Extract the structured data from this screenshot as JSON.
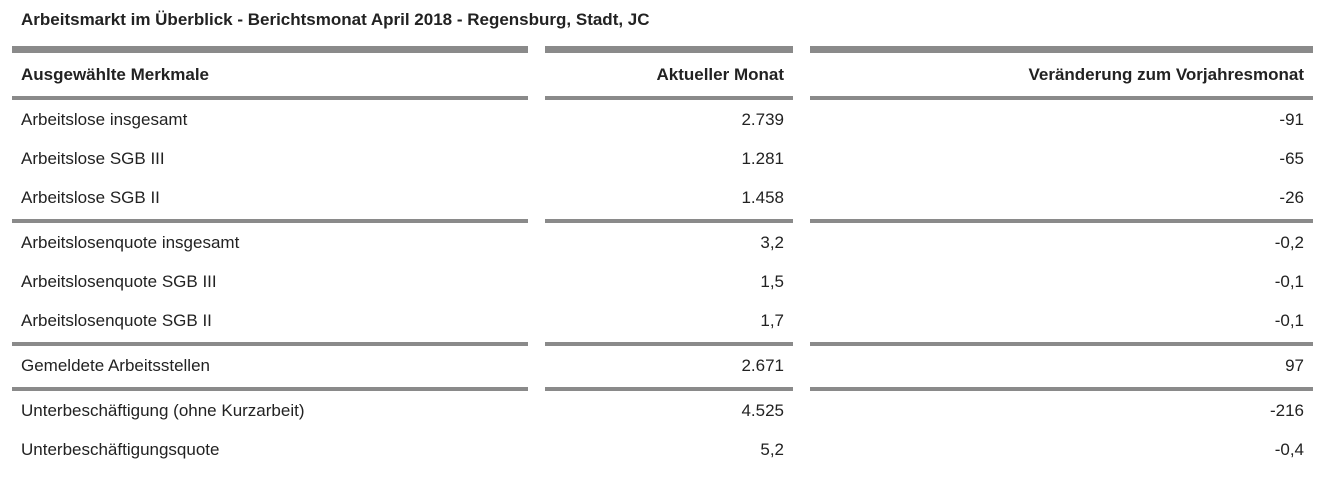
{
  "title": "Arbeitsmarkt im Überblick - Berichtsmonat April 2018 - Regensburg, Stadt, JC",
  "table": {
    "columns": [
      "Ausgewählte Merkmale",
      "Aktueller Monat",
      "Veränderung zum Vorjahresmonat"
    ],
    "groups": [
      [
        [
          "Arbeitslose insgesamt",
          "2.739",
          "-91"
        ],
        [
          "Arbeitslose SGB III",
          "1.281",
          "-65"
        ],
        [
          "Arbeitslose SGB II",
          "1.458",
          "-26"
        ]
      ],
      [
        [
          "Arbeitslosenquote insgesamt",
          "3,2",
          "-0,2"
        ],
        [
          "Arbeitslosenquote SGB III",
          "1,5",
          "-0,1"
        ],
        [
          "Arbeitslosenquote SGB II",
          "1,7",
          "-0,1"
        ]
      ],
      [
        [
          "Gemeldete Arbeitsstellen",
          "2.671",
          "97"
        ]
      ],
      [
        [
          "Unterbeschäftigung (ohne Kurzarbeit)",
          "4.525",
          "-216"
        ],
        [
          "Unterbeschäftigungsquote",
          "5,2",
          "-0,4"
        ]
      ]
    ]
  }
}
